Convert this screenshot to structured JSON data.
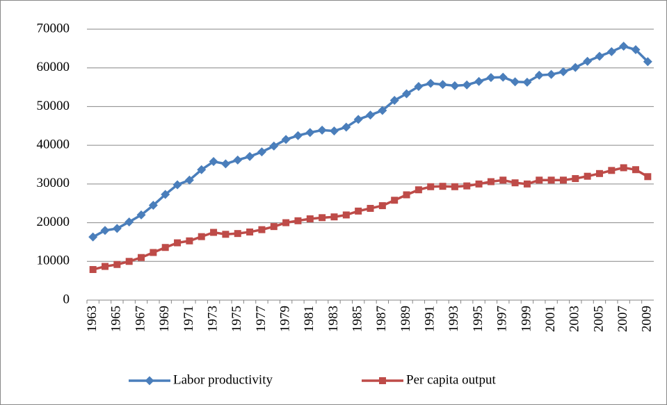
{
  "chart_data": {
    "type": "line",
    "categories": [
      "1963",
      null,
      "1965",
      null,
      "1967",
      null,
      "1969",
      null,
      "1971",
      null,
      "1973",
      null,
      "1975",
      null,
      "1977",
      null,
      "1979",
      null,
      "1981",
      null,
      "1983",
      null,
      "1985",
      null,
      "1987",
      null,
      "1989",
      null,
      "1991",
      null,
      "1993",
      null,
      "1995",
      null,
      "1997",
      null,
      "1999",
      null,
      "2001",
      null,
      "2003",
      null,
      "2005",
      null,
      "2007",
      null,
      "2009"
    ],
    "series": [
      {
        "name": "Labor productivity",
        "color": "#4a7ebb",
        "marker": "diamond",
        "values": [
          16300,
          18000,
          18500,
          20200,
          22000,
          24500,
          27300,
          29800,
          31000,
          33700,
          35800,
          35200,
          36200,
          37100,
          38300,
          39800,
          41500,
          42500,
          43300,
          43900,
          43700,
          44700,
          46700,
          47800,
          49000,
          51600,
          53300,
          55200,
          56000,
          55700,
          55400,
          55600,
          56500,
          57500,
          57600,
          56400,
          56300,
          58100,
          58300,
          59000,
          60100,
          61700,
          63000,
          64200,
          65600,
          64700,
          61600
        ]
      },
      {
        "name": "Per capita output",
        "color": "#be4b48",
        "marker": "square",
        "values": [
          7900,
          8700,
          9200,
          10000,
          11000,
          12300,
          13600,
          14800,
          15300,
          16400,
          17500,
          17000,
          17200,
          17600,
          18200,
          19000,
          20000,
          20500,
          21000,
          21300,
          21500,
          22000,
          23000,
          23700,
          24400,
          25800,
          27200,
          28500,
          29300,
          29400,
          29300,
          29500,
          30000,
          30600,
          31000,
          30300,
          30000,
          31000,
          31000,
          31000,
          31400,
          32000,
          32700,
          33500,
          34200,
          33700,
          31900
        ]
      }
    ],
    "ylim": [
      0,
      70000
    ],
    "yticks": [
      0,
      10000,
      20000,
      30000,
      40000,
      50000,
      60000,
      70000
    ],
    "grid": true,
    "legend": "bottom"
  }
}
